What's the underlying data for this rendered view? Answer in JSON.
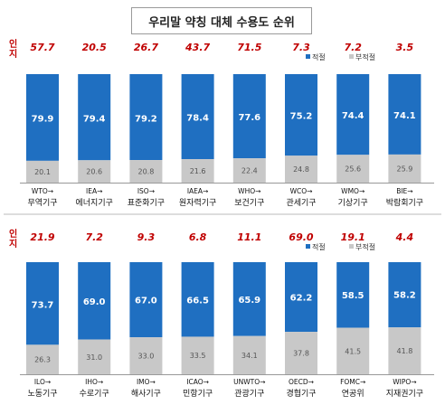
{
  "title": "우리말 약칭 대체 수용도 순위",
  "colors": {
    "adequate": "#1f6fc1",
    "inadequate": "#c8c8c8",
    "awareness": "#c00000"
  },
  "chart_data": [
    {
      "type": "bar",
      "stacked": true,
      "awareness_label": "인지",
      "legend": [
        {
          "name": "적절",
          "color": "#1f6fc1"
        },
        {
          "name": "부적절",
          "color": "#c8c8c8"
        }
      ],
      "codes": [
        "WTO→",
        "IEA→",
        "ISO→",
        "IAEA→",
        "WHO→",
        "WCO→",
        "WMO→",
        "BIE→"
      ],
      "names": [
        "무역기구",
        "에너지기구",
        "표준화기구",
        "원자력기구",
        "보건기구",
        "관세기구",
        "기상기구",
        "박람회기구"
      ],
      "awareness": [
        "57.7",
        "20.5",
        "26.7",
        "43.7",
        "71.5",
        "7.3",
        "7.2",
        "3.5"
      ],
      "series": [
        {
          "name": "적절",
          "values": [
            79.9,
            79.4,
            79.2,
            78.4,
            77.6,
            75.2,
            74.4,
            74.1
          ]
        },
        {
          "name": "부적절",
          "values": [
            20.1,
            20.6,
            20.8,
            21.6,
            22.4,
            24.8,
            25.6,
            25.9
          ]
        }
      ],
      "ylim": [
        0,
        100
      ]
    },
    {
      "type": "bar",
      "stacked": true,
      "awareness_label": "인지",
      "legend": [
        {
          "name": "적절",
          "color": "#1f6fc1"
        },
        {
          "name": "부적절",
          "color": "#c8c8c8"
        }
      ],
      "codes": [
        "ILO→",
        "IHO→",
        "IMO→",
        "ICAO→",
        "UNWTO→",
        "OECD→",
        "FOMC→",
        "WIPO→"
      ],
      "names": [
        "노동기구",
        "수로기구",
        "해사기구",
        "민항기구",
        "관광기구",
        "경협기구",
        "연공위",
        "지재권기구"
      ],
      "awareness": [
        "21.9",
        "7.2",
        "9.3",
        "6.8",
        "11.1",
        "69.0",
        "19.1",
        "4.4"
      ],
      "series": [
        {
          "name": "적절",
          "values": [
            73.7,
            69.0,
            67.0,
            66.5,
            65.9,
            62.2,
            58.5,
            58.2
          ]
        },
        {
          "name": "부적절",
          "values": [
            26.3,
            31.0,
            33.0,
            33.5,
            34.1,
            37.8,
            41.5,
            41.8
          ]
        }
      ],
      "ylim": [
        0,
        100
      ]
    }
  ]
}
